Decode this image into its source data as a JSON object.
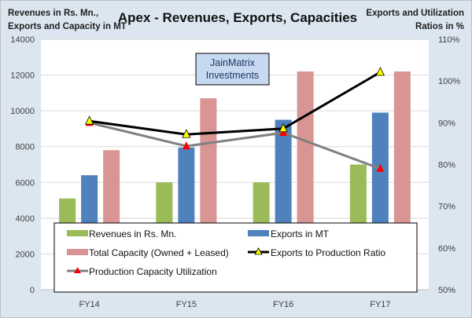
{
  "chart_data": {
    "type": "bar",
    "title": "Apex - Revenues, Exports, Capacities",
    "ylabel_left": [
      "Revenues in Rs. Mn.,",
      "Exports and Capacity in MT"
    ],
    "ylabel_right": [
      "Exports and Utilization",
      "Ratios in %"
    ],
    "watermark": [
      "JainMatrix",
      "Investments"
    ],
    "categories": [
      "FY14",
      "FY15",
      "FY16",
      "FY17"
    ],
    "ylim_left": [
      0,
      14000
    ],
    "yticks_left": [
      "0",
      "2000",
      "4000",
      "6000",
      "8000",
      "10000",
      "12000",
      "14000"
    ],
    "ylim_right": [
      50,
      110
    ],
    "yticks_right": [
      "50%",
      "60%",
      "70%",
      "80%",
      "90%",
      "100%",
      "110%"
    ],
    "grid": true,
    "legend_position": "bottom-inside",
    "series": [
      {
        "name": "Revenues in Rs. Mn.",
        "type": "bar",
        "axis": "left",
        "color": "#9bbb59",
        "values": [
          5100,
          6000,
          6000,
          7000
        ]
      },
      {
        "name": "Exports in MT",
        "type": "bar",
        "axis": "left",
        "color": "#4f81bd",
        "values": [
          6400,
          7950,
          9500,
          9900
        ]
      },
      {
        "name": "Total Capacity (Owned + Leased)",
        "type": "bar",
        "axis": "left",
        "color": "#d99594",
        "values": [
          7800,
          10700,
          12200,
          12200
        ]
      },
      {
        "name": "Exports to Production Ratio",
        "type": "line",
        "axis": "right",
        "color": "#000000",
        "marker": "triangle",
        "marker_color": "#ffff00",
        "values": [
          90.4,
          87.2,
          88.6,
          102.1
        ]
      },
      {
        "name": "Production Capacity Utilization",
        "type": "line",
        "axis": "right",
        "color": "#808080",
        "marker": "triangle",
        "marker_color": "#ff0000",
        "values": [
          90.0,
          84.4,
          87.6,
          79.0
        ]
      }
    ]
  }
}
